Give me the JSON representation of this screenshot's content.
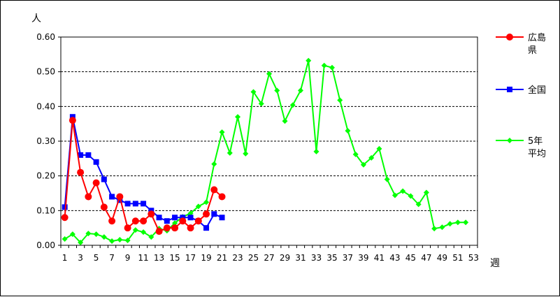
{
  "chart_data": {
    "type": "line",
    "y_unit_label": "人",
    "x_unit_label": "週",
    "ylim": [
      0,
      0.6
    ],
    "y_ticks": [
      "0.00",
      "0.10",
      "0.20",
      "0.30",
      "0.40",
      "0.50",
      "0.60"
    ],
    "y_tick_values": [
      0,
      0.1,
      0.2,
      0.3,
      0.4,
      0.5,
      0.6
    ],
    "x_range": [
      1,
      53
    ],
    "x_ticks": [
      "1",
      "3",
      "5",
      "7",
      "9",
      "11",
      "13",
      "15",
      "17",
      "19",
      "21",
      "23",
      "25",
      "27",
      "29",
      "31",
      "33",
      "35",
      "37",
      "39",
      "41",
      "43",
      "45",
      "47",
      "49",
      "51",
      "53"
    ],
    "grid": "horizontal-dashed",
    "legend_position": "right",
    "series": [
      {
        "name": "広島県",
        "legend_lines": [
          "広島",
          "県"
        ],
        "color": "#ff0000",
        "marker": "circle",
        "x": [
          1,
          2,
          3,
          4,
          5,
          6,
          7,
          8,
          9,
          10,
          11,
          12,
          13,
          14,
          15,
          16,
          17,
          18,
          19,
          20,
          21
        ],
        "values": [
          0.08,
          0.36,
          0.21,
          0.14,
          0.18,
          0.11,
          0.07,
          0.14,
          0.05,
          0.07,
          0.07,
          0.09,
          0.04,
          0.05,
          0.05,
          0.07,
          0.05,
          0.07,
          0.09,
          0.16,
          0.14
        ]
      },
      {
        "name": "全国",
        "legend_lines": [
          "全国"
        ],
        "color": "#0000ff",
        "marker": "square",
        "x": [
          1,
          2,
          3,
          4,
          5,
          6,
          7,
          8,
          9,
          10,
          11,
          12,
          13,
          14,
          15,
          16,
          17,
          18,
          19,
          20,
          21
        ],
        "values": [
          0.11,
          0.37,
          0.26,
          0.26,
          0.24,
          0.19,
          0.14,
          0.13,
          0.12,
          0.12,
          0.12,
          0.1,
          0.08,
          0.07,
          0.08,
          0.08,
          0.08,
          0.07,
          0.05,
          0.09,
          0.08
        ]
      },
      {
        "name": "5年平均",
        "legend_lines": [
          "5年",
          "平均"
        ],
        "color": "#00ff00",
        "marker": "diamond",
        "x": [
          1,
          2,
          3,
          4,
          5,
          6,
          7,
          8,
          9,
          10,
          11,
          12,
          13,
          14,
          15,
          16,
          17,
          18,
          19,
          20,
          21,
          22,
          23,
          24,
          25,
          26,
          27,
          28,
          29,
          30,
          31,
          32,
          33,
          34,
          35,
          36,
          37,
          38,
          39,
          40,
          41,
          42,
          43,
          44,
          45,
          46,
          47,
          48,
          49,
          50,
          51,
          52
        ],
        "values": [
          0.018,
          0.032,
          0.008,
          0.034,
          0.032,
          0.024,
          0.012,
          0.016,
          0.014,
          0.044,
          0.038,
          0.024,
          0.048,
          0.042,
          0.064,
          0.082,
          0.092,
          0.112,
          0.124,
          0.234,
          0.326,
          0.266,
          0.37,
          0.264,
          0.442,
          0.408,
          0.494,
          0.446,
          0.358,
          0.404,
          0.446,
          0.532,
          0.27,
          0.518,
          0.512,
          0.418,
          0.33,
          0.262,
          0.232,
          0.252,
          0.278,
          0.19,
          0.144,
          0.156,
          0.142,
          0.118,
          0.152,
          0.048,
          0.052,
          0.062,
          0.066,
          0.066
        ]
      }
    ]
  }
}
